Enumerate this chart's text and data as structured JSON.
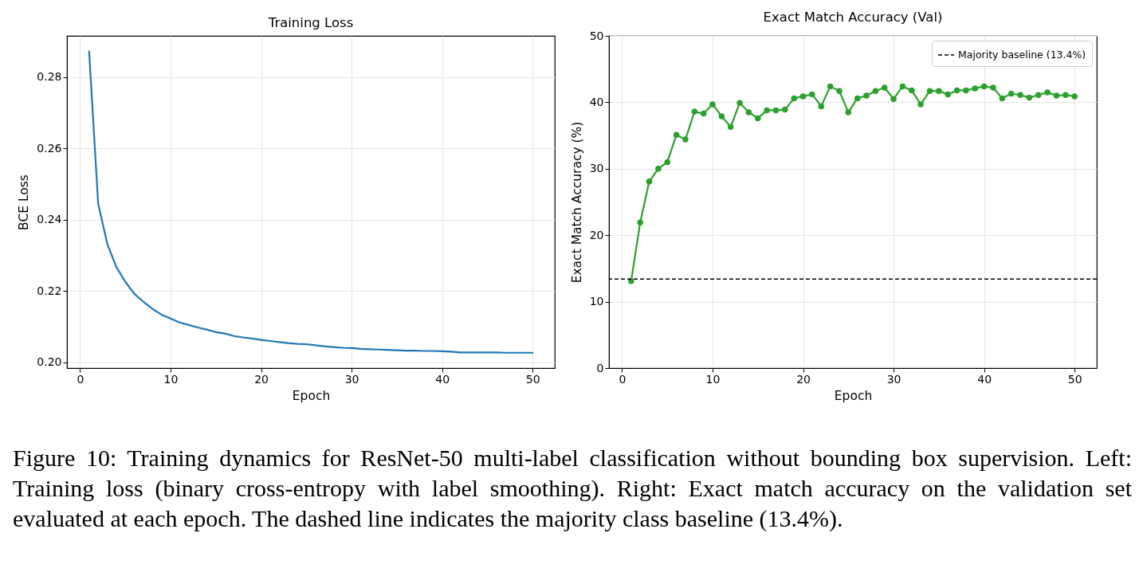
{
  "chart_data": [
    {
      "type": "line",
      "title": "Training Loss",
      "xlabel": "Epoch",
      "ylabel": "BCE Loss",
      "x": [
        1,
        2,
        3,
        4,
        5,
        6,
        7,
        8,
        9,
        10,
        11,
        12,
        13,
        14,
        15,
        16,
        17,
        18,
        19,
        20,
        21,
        22,
        23,
        24,
        25,
        26,
        27,
        28,
        29,
        30,
        31,
        32,
        33,
        34,
        35,
        36,
        37,
        38,
        39,
        40,
        41,
        42,
        43,
        44,
        45,
        46,
        47,
        48,
        49,
        50
      ],
      "series": [
        {
          "color": "#1f77b4",
          "values": [
            0.2872,
            0.2445,
            0.2333,
            0.2268,
            0.2226,
            0.2192,
            0.217,
            0.215,
            0.2134,
            0.2123,
            0.2112,
            0.2105,
            0.2098,
            0.2092,
            0.2085,
            0.2081,
            0.2074,
            0.207,
            0.2067,
            0.2063,
            0.206,
            0.2057,
            0.2054,
            0.2052,
            0.2051,
            0.2048,
            0.2045,
            0.2043,
            0.2041,
            0.204,
            0.2038,
            0.2037,
            0.2036,
            0.2035,
            0.2034,
            0.2033,
            0.2033,
            0.2032,
            0.2032,
            0.2031,
            0.203,
            0.2028,
            0.2028,
            0.2028,
            0.2028,
            0.2028,
            0.2027,
            0.2027,
            0.2027,
            0.2027
          ]
        }
      ],
      "xlim": [
        -1.45,
        52.45
      ],
      "xticks": [
        0,
        10,
        20,
        30,
        40,
        50
      ],
      "ylim": [
        0.1984,
        0.2916
      ],
      "yticks": [
        {
          "value": 0.2,
          "label": "0.20"
        },
        {
          "value": 0.22,
          "label": "0.22"
        },
        {
          "value": 0.24,
          "label": "0.24"
        },
        {
          "value": 0.26,
          "label": "0.26"
        },
        {
          "value": 0.28,
          "label": "0.28"
        }
      ],
      "grid": true,
      "marker": "none"
    },
    {
      "type": "line",
      "title": "Exact Match Accuracy (Val)",
      "xlabel": "Epoch",
      "ylabel": "Exact Match Accuracy (%)",
      "x": [
        1,
        2,
        3,
        4,
        5,
        6,
        7,
        8,
        9,
        10,
        11,
        12,
        13,
        14,
        15,
        16,
        17,
        18,
        19,
        20,
        21,
        22,
        23,
        24,
        25,
        26,
        27,
        28,
        29,
        30,
        31,
        32,
        33,
        34,
        35,
        36,
        37,
        38,
        39,
        40,
        41,
        42,
        43,
        44,
        45,
        46,
        47,
        48,
        49,
        50
      ],
      "series": [
        {
          "color": "#2ca02c",
          "values": [
            13.1,
            21.9,
            28.1,
            30.0,
            31.0,
            35.1,
            34.4,
            38.6,
            38.3,
            39.7,
            37.9,
            36.3,
            39.9,
            38.5,
            37.6,
            38.8,
            38.8,
            38.9,
            40.6,
            40.9,
            41.2,
            39.4,
            42.4,
            41.7,
            38.5,
            40.6,
            41.0,
            41.7,
            42.2,
            40.5,
            42.4,
            41.8,
            39.7,
            41.7,
            41.7,
            41.2,
            41.8,
            41.8,
            42.1,
            42.4,
            42.2,
            40.6,
            41.3,
            41.1,
            40.7,
            41.1,
            41.5,
            41.0,
            41.1,
            40.9
          ]
        }
      ],
      "xlim": [
        -1.45,
        52.45
      ],
      "xticks": [
        0,
        10,
        20,
        30,
        40,
        50
      ],
      "ylim": [
        0,
        50
      ],
      "yticks": [
        0,
        10,
        20,
        30,
        40,
        50
      ],
      "grid": true,
      "marker": "circle",
      "legend": "top right",
      "ref_lines": [
        {
          "axis": "y",
          "value": 13.4,
          "label": "Majority baseline (13.4%)",
          "color": "#000000",
          "line_style": "dashed"
        }
      ],
      "annotations": [
        "Figure 10: Training dynamics for ResNet-50 multi-label classification without bounding box supervision. Left: Training loss (binary cross-entropy with label smoothing). Right: Exact match accuracy on the validation set evaluated at each epoch. The dashed line indicates the majority class baseline (13.4%)."
      ]
    }
  ]
}
